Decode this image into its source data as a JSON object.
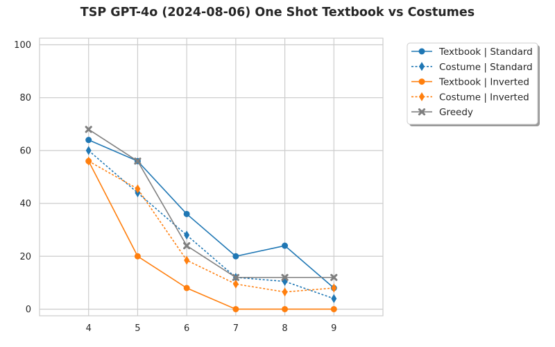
{
  "chart_data": {
    "type": "line",
    "title": "TSP GPT-4o (2024-08-06) One Shot Textbook vs Costumes",
    "xlabel": "",
    "ylabel": "",
    "x": [
      4,
      5,
      6,
      7,
      8,
      9
    ],
    "xlim": [
      3,
      10
    ],
    "ylim": [
      -2.5,
      102.5
    ],
    "xticks": [
      4,
      5,
      6,
      7,
      8,
      9
    ],
    "yticks": [
      0,
      20,
      40,
      60,
      80,
      100
    ],
    "grid": true,
    "legend_position": "outside-upper-right",
    "series": [
      {
        "name": "Textbook | Standard",
        "values": [
          64,
          56,
          36,
          20,
          24,
          8
        ],
        "color": "#1f77b4",
        "linestyle": "solid",
        "marker": "circle"
      },
      {
        "name": "Costume | Standard",
        "values": [
          60,
          44,
          28,
          12,
          10.5,
          4
        ],
        "color": "#1f77b4",
        "linestyle": "dotted",
        "marker": "diamond"
      },
      {
        "name": "Textbook | Inverted",
        "values": [
          56,
          20,
          8,
          0,
          0,
          0
        ],
        "color": "#ff7f0e",
        "linestyle": "solid",
        "marker": "circle"
      },
      {
        "name": "Costume | Inverted",
        "values": [
          56,
          45.5,
          18.5,
          9.5,
          6.5,
          8
        ],
        "color": "#ff7f0e",
        "linestyle": "dotted",
        "marker": "diamond"
      },
      {
        "name": "Greedy",
        "values": [
          68,
          56,
          24,
          12,
          12,
          12
        ],
        "color": "#7f7f7f",
        "linestyle": "solid",
        "marker": "x"
      }
    ]
  }
}
